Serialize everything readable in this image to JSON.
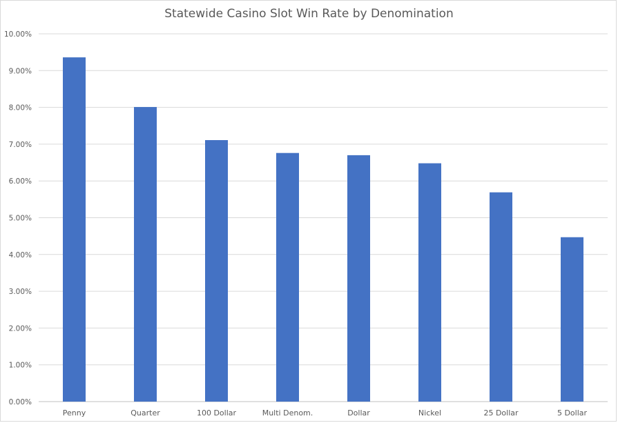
{
  "chart_data": {
    "type": "bar",
    "title": "Statewide Casino Slot Win Rate by Denomination",
    "xlabel": "",
    "ylabel": "",
    "categories": [
      "Penny",
      "Quarter",
      "100 Dollar",
      "Multi Denom.",
      "Dollar",
      "Nickel",
      "25 Dollar",
      "5 Dollar"
    ],
    "values": [
      9.36,
      8.01,
      7.11,
      6.76,
      6.7,
      6.48,
      5.69,
      4.47
    ],
    "ylim": [
      0,
      10
    ],
    "yticks": [
      "0.00%",
      "1.00%",
      "2.00%",
      "3.00%",
      "4.00%",
      "5.00%",
      "6.00%",
      "7.00%",
      "8.00%",
      "9.00%",
      "10.00%"
    ],
    "bar_color": "#4472C4",
    "grid": true,
    "legend": false
  }
}
